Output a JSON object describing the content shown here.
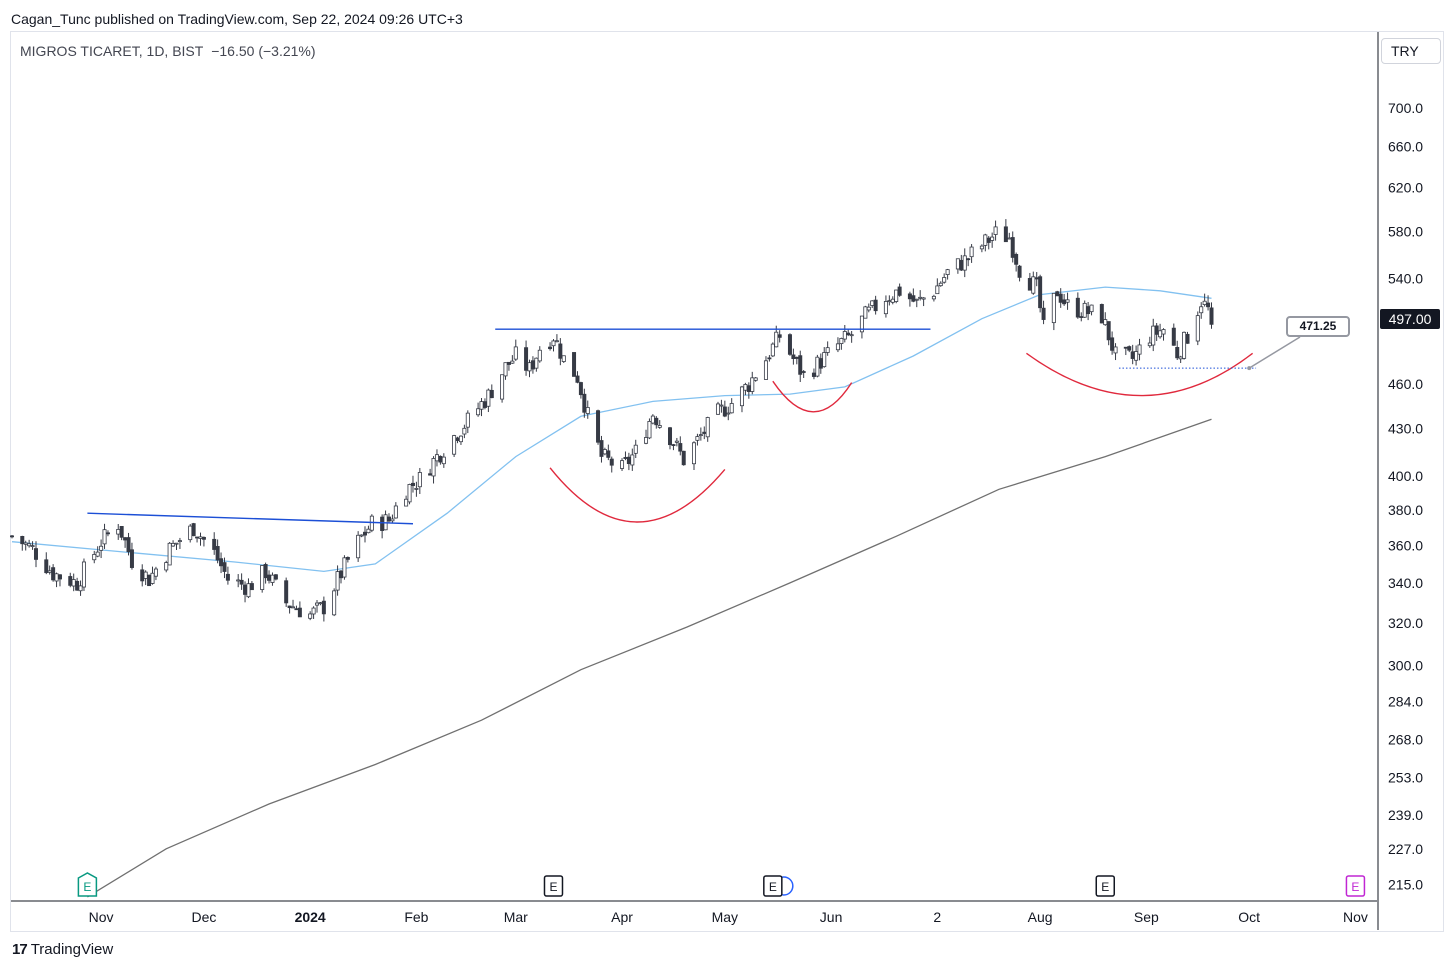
{
  "header": {
    "published_text": "Cagan_Tunc published on TradingView.com, Sep 22, 2024 09:26 UTC+3"
  },
  "legend": {
    "symbol": "MIGROS TICARET, 1D, BIST",
    "change": "−16.50 (−3.21%)"
  },
  "currency_button": "TRY",
  "last_price_label": "497.00",
  "callout_label": "471.25",
  "footer": {
    "brand": "TradingView",
    "logo_glyph": "17"
  },
  "colors": {
    "candle": "#363a45",
    "ma_fast": "#82c1f0",
    "ma_slow": "#707070",
    "trendline": "#1c4fd6",
    "arc": "#e0293d",
    "grid_text": "#131722"
  },
  "event_markers": [
    {
      "label": "E",
      "date": "2023-10-28",
      "style": "earnings-green"
    },
    {
      "label": "E",
      "date": "2024-03-12",
      "style": "earnings"
    },
    {
      "label": "E",
      "date": "2024-05-15",
      "style": "earnings-dividend"
    },
    {
      "label": "E",
      "date": "2024-08-20",
      "style": "earnings"
    },
    {
      "label": "E",
      "date": "2024-11-01",
      "style": "earnings-magenta"
    }
  ],
  "chart_data": {
    "type": "candlestick",
    "title": "",
    "scale": "log",
    "x_tick_labels": [
      {
        "label": "Nov",
        "date": "2023-11-01",
        "bold": false
      },
      {
        "label": "Dec",
        "date": "2023-12-01",
        "bold": false
      },
      {
        "label": "2024",
        "date": "2024-01-01",
        "bold": true
      },
      {
        "label": "Feb",
        "date": "2024-02-01",
        "bold": false
      },
      {
        "label": "Mar",
        "date": "2024-03-01",
        "bold": false
      },
      {
        "label": "Apr",
        "date": "2024-04-01",
        "bold": false
      },
      {
        "label": "May",
        "date": "2024-05-01",
        "bold": false
      },
      {
        "label": "Jun",
        "date": "2024-06-01",
        "bold": false
      },
      {
        "label": "2",
        "date": "2024-07-02",
        "bold": false
      },
      {
        "label": "Aug",
        "date": "2024-08-01",
        "bold": false
      },
      {
        "label": "Sep",
        "date": "2024-09-01",
        "bold": false
      },
      {
        "label": "Oct",
        "date": "2024-10-01",
        "bold": false
      },
      {
        "label": "Nov",
        "date": "2024-11-01",
        "bold": false
      }
    ],
    "y_tick_labels": [
      "700.0",
      "660.0",
      "620.0",
      "580.0",
      "540.0",
      "460.0",
      "430.0",
      "400.0",
      "380.0",
      "360.0",
      "340.0",
      "320.0",
      "300.0",
      "284.0",
      "268.0",
      "253.0",
      "239.0",
      "227.0",
      "215.0"
    ],
    "y_ticks": [
      700,
      660,
      620,
      580,
      540,
      460,
      430,
      400,
      380,
      360,
      340,
      320,
      300,
      284,
      268,
      253,
      239,
      227,
      215
    ],
    "x_range": [
      "2023-10-06",
      "2024-11-07"
    ],
    "y_range": [
      210,
      755
    ],
    "grid": false,
    "last_price": 497.0,
    "price_points": [
      [
        "2023-10-06",
        365
      ],
      [
        "2023-10-12",
        358
      ],
      [
        "2023-10-18",
        345
      ],
      [
        "2023-10-25",
        340
      ],
      [
        "2023-11-01",
        362
      ],
      [
        "2023-11-06",
        372
      ],
      [
        "2023-11-10",
        352
      ],
      [
        "2023-11-15",
        342
      ],
      [
        "2023-11-21",
        358
      ],
      [
        "2023-11-28",
        370
      ],
      [
        "2023-12-04",
        356
      ],
      [
        "2023-12-08",
        342
      ],
      [
        "2023-12-14",
        338
      ],
      [
        "2023-12-19",
        346
      ],
      [
        "2023-12-25",
        330
      ],
      [
        "2024-01-01",
        324
      ],
      [
        "2024-01-05",
        328
      ],
      [
        "2024-01-10",
        345
      ],
      [
        "2024-01-15",
        362
      ],
      [
        "2024-01-19",
        372
      ],
      [
        "2024-01-24",
        374
      ],
      [
        "2024-01-29",
        392
      ],
      [
        "2024-02-02",
        398
      ],
      [
        "2024-02-07",
        412
      ],
      [
        "2024-02-12",
        425
      ],
      [
        "2024-02-16",
        435
      ],
      [
        "2024-02-22",
        452
      ],
      [
        "2024-02-27",
        472
      ],
      [
        "2024-03-01",
        480
      ],
      [
        "2024-03-05",
        470
      ],
      [
        "2024-03-08",
        486
      ],
      [
        "2024-03-12",
        495
      ],
      [
        "2024-03-15",
        478
      ],
      [
        "2024-03-19",
        465
      ],
      [
        "2024-03-22",
        438
      ],
      [
        "2024-03-26",
        412
      ],
      [
        "2024-04-01",
        404
      ],
      [
        "2024-04-05",
        415
      ],
      [
        "2024-04-10",
        440
      ],
      [
        "2024-04-15",
        425
      ],
      [
        "2024-04-19",
        410
      ],
      [
        "2024-04-24",
        425
      ],
      [
        "2024-04-29",
        440
      ],
      [
        "2024-05-03",
        447
      ],
      [
        "2024-05-08",
        460
      ],
      [
        "2024-05-13",
        478
      ],
      [
        "2024-05-17",
        495
      ],
      [
        "2024-05-21",
        478
      ],
      [
        "2024-05-24",
        466
      ],
      [
        "2024-05-28",
        474
      ],
      [
        "2024-06-03",
        488
      ],
      [
        "2024-06-07",
        496
      ],
      [
        "2024-06-11",
        510
      ],
      [
        "2024-06-17",
        525
      ],
      [
        "2024-06-21",
        530
      ],
      [
        "2024-06-26",
        520
      ],
      [
        "2024-07-01",
        530
      ],
      [
        "2024-07-05",
        545
      ],
      [
        "2024-07-10",
        555
      ],
      [
        "2024-07-15",
        568
      ],
      [
        "2024-07-19",
        578
      ],
      [
        "2024-07-23",
        575
      ],
      [
        "2024-07-26",
        548
      ],
      [
        "2024-07-31",
        532
      ],
      [
        "2024-08-02",
        500
      ],
      [
        "2024-08-06",
        530
      ],
      [
        "2024-08-09",
        518
      ],
      [
        "2024-08-14",
        514
      ],
      [
        "2024-08-19",
        510
      ],
      [
        "2024-08-23",
        480
      ],
      [
        "2024-08-28",
        478
      ],
      [
        "2024-09-02",
        495
      ],
      [
        "2024-09-06",
        500
      ],
      [
        "2024-09-10",
        482
      ],
      [
        "2024-09-13",
        495
      ],
      [
        "2024-09-17",
        522
      ],
      [
        "2024-09-19",
        515
      ],
      [
        "2024-09-20",
        497
      ]
    ],
    "series": [
      {
        "points": [
          [
            "2023-10-06",
            362
          ],
          [
            "2023-11-10",
            356
          ],
          [
            "2023-12-10",
            351
          ],
          [
            "2024-01-05",
            346
          ],
          [
            "2024-01-20",
            350
          ],
          [
            "2024-02-10",
            378
          ],
          [
            "2024-03-01",
            412
          ],
          [
            "2024-03-20",
            438
          ],
          [
            "2024-04-10",
            448
          ],
          [
            "2024-05-01",
            452
          ],
          [
            "2024-05-20",
            453
          ],
          [
            "2024-06-05",
            458
          ],
          [
            "2024-06-25",
            480
          ],
          [
            "2024-07-15",
            508
          ],
          [
            "2024-08-01",
            527
          ],
          [
            "2024-08-20",
            533
          ],
          [
            "2024-09-05",
            530
          ],
          [
            "2024-09-20",
            524
          ]
        ]
      },
      {
        "points": [
          [
            "2023-10-28",
            211
          ],
          [
            "2023-11-20",
            227
          ],
          [
            "2023-12-20",
            243
          ],
          [
            "2024-01-20",
            258
          ],
          [
            "2024-02-20",
            276
          ],
          [
            "2024-03-20",
            298
          ],
          [
            "2024-04-20",
            318
          ],
          [
            "2024-05-20",
            340
          ],
          [
            "2024-06-20",
            365
          ],
          [
            "2024-07-20",
            392
          ],
          [
            "2024-08-20",
            412
          ],
          [
            "2024-09-20",
            436
          ]
        ]
      }
    ],
    "trendlines": [
      {
        "from": [
          "2023-10-28",
          378
        ],
        "to": [
          "2024-01-31",
          372
        ]
      },
      {
        "from": [
          "2024-02-24",
          500
        ],
        "to": [
          "2024-06-30",
          500
        ]
      }
    ],
    "arcs": [
      {
        "from": [
          "2024-03-11",
          405
        ],
        "bottom": [
          "2024-04-05",
          373
        ],
        "to": [
          "2024-05-01",
          404
        ]
      },
      {
        "from": [
          "2024-05-15",
          462
        ],
        "bottom": [
          "2024-05-27",
          441
        ],
        "to": [
          "2024-06-07",
          461
        ]
      },
      {
        "from": [
          "2024-07-28",
          482
        ],
        "bottom": [
          "2024-08-31",
          452
        ],
        "to": [
          "2024-10-02",
          482
        ]
      }
    ],
    "price_line": {
      "value": 471.25,
      "from": "2024-08-24",
      "to": "2024-10-03"
    }
  }
}
